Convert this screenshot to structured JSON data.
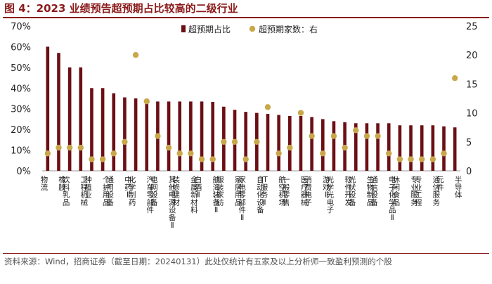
{
  "figure": {
    "title": "图 4：2023 业绩预告超预期占比较高的二级行业",
    "source": "资料来源：Wind，招商证券（截至日期：20240131）此处仅统计有五家及以上分析师一致盈利预测的个股"
  },
  "chart_data": {
    "type": "bar",
    "title": "",
    "categories": [
      "物流",
      "橡胶",
      "饮料乳品",
      "工程机械",
      "种植业",
      "个护用品",
      "通用设备",
      "中药Ⅱ",
      "化学制药",
      "汽车零部件",
      "电网设备",
      "其他电源设备Ⅱ",
      "装修建材",
      "金属新材料",
      "白酒Ⅱ",
      "航海装备Ⅱ",
      "服装家纺",
      "家居用品",
      "家电零部件Ⅱ",
      "自动化设备",
      "IT服务Ⅱ",
      "航空机场",
      "一般零售",
      "医疗器械",
      "消费电子",
      "游戏Ⅱ",
      "光学光电子",
      "软件开发",
      "光伏设备",
      "生物制品",
      "通信设备",
      "电子化学品Ⅱ",
      "休闲食品",
      "专业服务",
      "专业工程",
      "通信服务",
      "元件",
      "半导体"
    ],
    "series": [
      {
        "name": "超预期占比",
        "axis": "left",
        "color": "#6b0f15",
        "values": [
          0.6,
          0.57,
          0.5,
          0.5,
          0.4,
          0.4,
          0.375,
          0.355,
          0.35,
          0.345,
          0.335,
          0.335,
          0.335,
          0.335,
          0.335,
          0.333,
          0.31,
          0.295,
          0.285,
          0.28,
          0.275,
          0.27,
          0.265,
          0.265,
          0.26,
          0.25,
          0.24,
          0.235,
          0.23,
          0.23,
          0.23,
          0.23,
          0.22,
          0.22,
          0.22,
          0.22,
          0.215,
          0.21
        ]
      },
      {
        "name": "超预期家数：右",
        "axis": "right",
        "color": "#c8a84b",
        "values": [
          3,
          4,
          4,
          4,
          2,
          2,
          3,
          5,
          20,
          12,
          6,
          4,
          3,
          3,
          2,
          2,
          5,
          5,
          2,
          5,
          11,
          3,
          4,
          10,
          6,
          3,
          6,
          4,
          7,
          6,
          6,
          3,
          2,
          2,
          2,
          2,
          3,
          16
        ]
      }
    ],
    "y_left": {
      "min": 0,
      "max": 0.7,
      "ticks": [
        "0%",
        "10%",
        "20%",
        "30%",
        "40%",
        "50%",
        "60%",
        "70%"
      ]
    },
    "y_right": {
      "min": 0,
      "max": 25,
      "ticks": [
        "0",
        "5",
        "10",
        "15",
        "20",
        "25"
      ]
    },
    "legend": {
      "position": "top",
      "items": [
        "超预期占比",
        "超预期家数：右"
      ]
    },
    "grid": false
  }
}
